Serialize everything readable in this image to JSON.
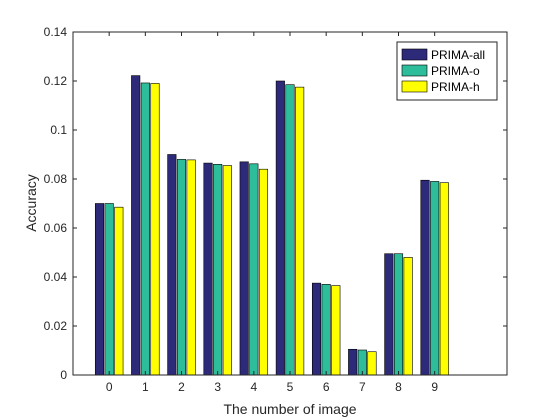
{
  "chart_data": {
    "type": "bar",
    "xlabel": "The number of image",
    "ylabel": "Accuracy",
    "categories": [
      "0",
      "1",
      "2",
      "3",
      "4",
      "5",
      "6",
      "7",
      "8",
      "9"
    ],
    "xlim": [
      -1,
      11
    ],
    "ylim": [
      0,
      0.14
    ],
    "yticks": [
      "0",
      "0.02",
      "0.04",
      "0.06",
      "0.08",
      "0.1",
      "0.12",
      "0.14"
    ],
    "legend_position": "top-right",
    "grid": false,
    "series": [
      {
        "name": "PRIMA-all",
        "color": "#2e2a7a",
        "values": [
          0.07,
          0.1222,
          0.09,
          0.0865,
          0.087,
          0.12,
          0.0375,
          0.0105,
          0.0495,
          0.0795
        ]
      },
      {
        "name": "PRIMA-o",
        "color": "#2ebd9b",
        "values": [
          0.07,
          0.1192,
          0.088,
          0.086,
          0.0862,
          0.1185,
          0.037,
          0.0102,
          0.0495,
          0.079
        ]
      },
      {
        "name": "PRIMA-h",
        "color": "#ffff00",
        "values": [
          0.0685,
          0.119,
          0.0878,
          0.0855,
          0.084,
          0.1175,
          0.0365,
          0.0095,
          0.048,
          0.0785
        ]
      }
    ]
  }
}
